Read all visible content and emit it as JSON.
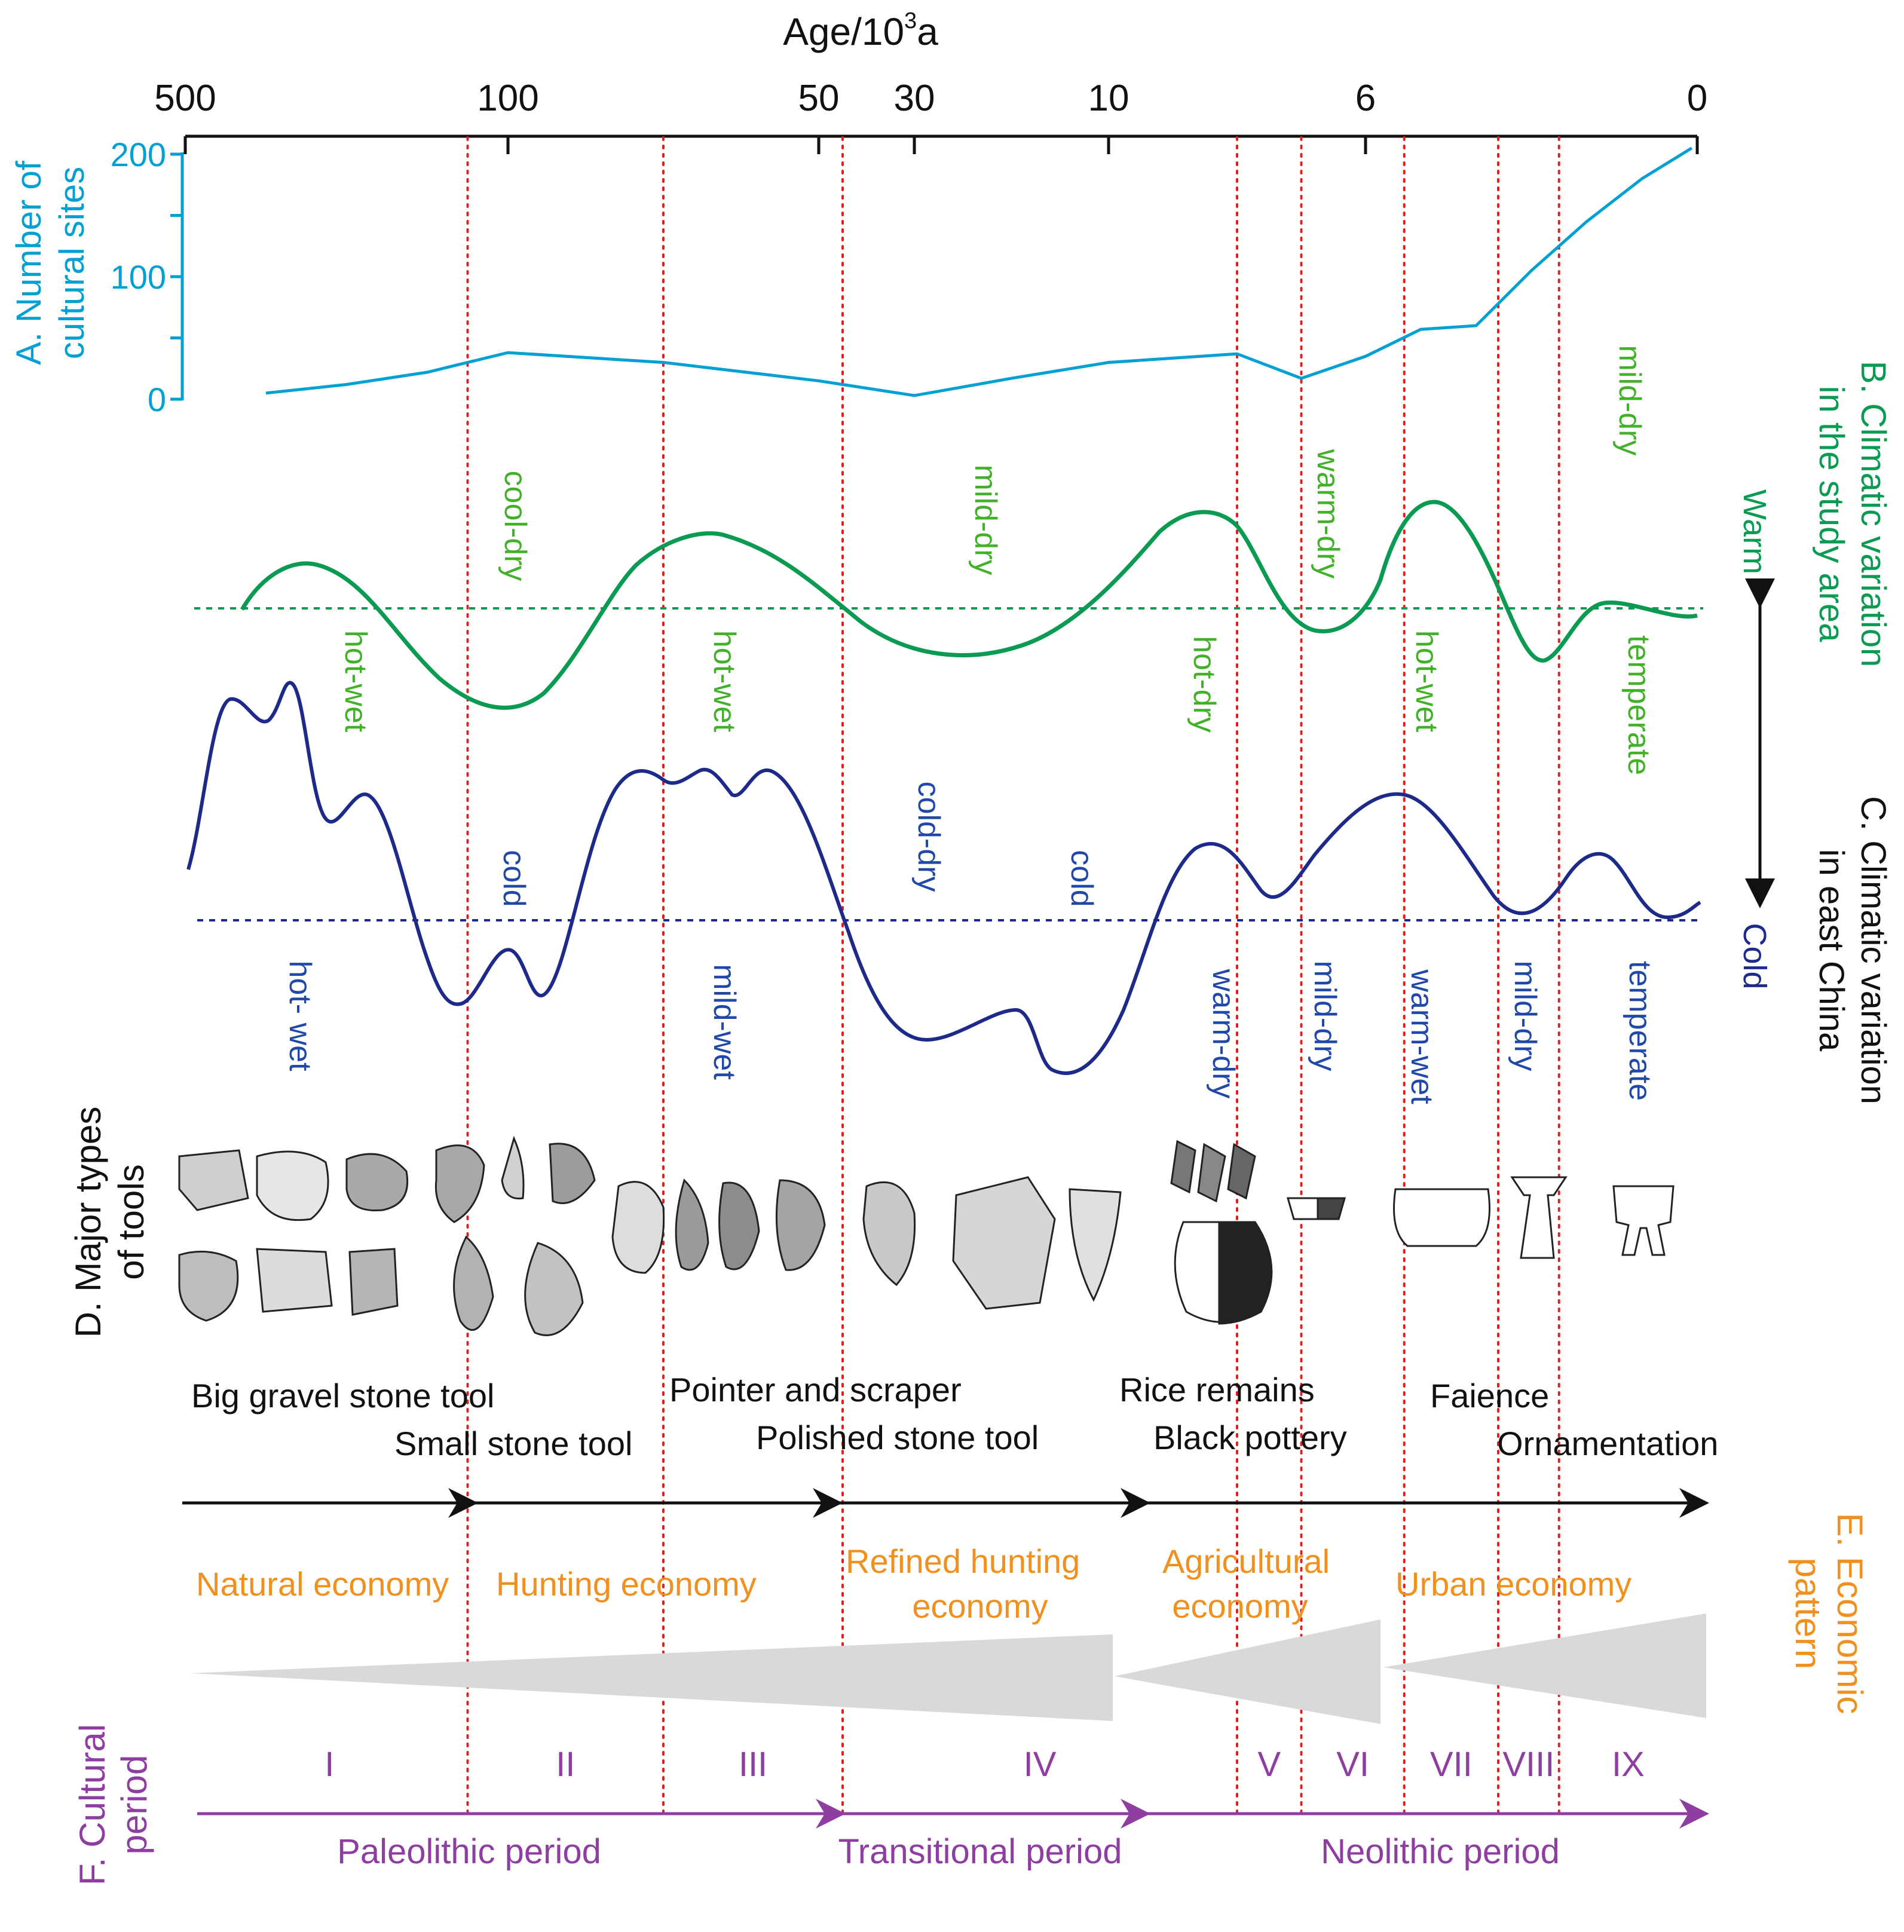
{
  "figure": {
    "axis_title": "Age/10",
    "axis_title_sup": "3",
    "axis_title_unit": "a",
    "ticks": [
      "500",
      "100",
      "50",
      "30",
      "10",
      "6",
      "0"
    ]
  },
  "chart_data": {
    "type": "line",
    "x_axis": {
      "label": "Age/10³a",
      "tick_labels": [
        "500",
        "100",
        "50",
        "30",
        "10",
        "6",
        "0"
      ],
      "scale": "segmented (non-linear)"
    },
    "period_boundaries_ka": [
      150,
      75,
      45,
      8,
      7,
      5.3,
      3.6,
      2.5
    ],
    "panel_a": {
      "title_line1": "A. Number of",
      "title_line2": "cultural sites",
      "y_ticks": [
        "200",
        "100",
        "0"
      ],
      "ylim": [
        0,
        200
      ],
      "x_ka": [
        400,
        300,
        200,
        100,
        75,
        50,
        30,
        20,
        10,
        8,
        7,
        6,
        5,
        4,
        3,
        2,
        1,
        0.1
      ],
      "values": [
        5,
        12,
        22,
        38,
        30,
        15,
        3,
        17,
        30,
        37,
        17,
        35,
        57,
        60,
        105,
        145,
        180,
        205
      ],
      "color": "#00a0d2"
    },
    "panel_b": {
      "title_line1": "B. Climatic variation",
      "title_line2": "in the study area",
      "color": "#0a9a52",
      "labels": [
        {
          "text": "cool-dry",
          "position": "upper"
        },
        {
          "text": "mild-dry",
          "position": "upper"
        },
        {
          "text": "warm-dry",
          "position": "upper"
        },
        {
          "text": "mild-dry",
          "position": "upper"
        },
        {
          "text": "hot-wet",
          "position": "lower"
        },
        {
          "text": "hot-wet",
          "position": "lower"
        },
        {
          "text": "hot-dry",
          "position": "lower"
        },
        {
          "text": "hot-wet",
          "position": "lower"
        },
        {
          "text": "temperate",
          "position": "lower"
        }
      ]
    },
    "panel_c": {
      "title_line1": "C. Climatic variation",
      "title_line2": "in east China",
      "color": "#1d2a8a",
      "labels": [
        {
          "text": "cold",
          "position": "upper"
        },
        {
          "text": "cold-dry",
          "position": "upper"
        },
        {
          "text": "cold",
          "position": "upper"
        },
        {
          "text": "hot- wet",
          "position": "lower"
        },
        {
          "text": "mild-wet",
          "position": "lower"
        },
        {
          "text": "warm-dry",
          "position": "lower"
        },
        {
          "text": "mild-dry",
          "position": "lower"
        },
        {
          "text": "warm-wet",
          "position": "lower"
        },
        {
          "text": "mild-dry",
          "position": "lower"
        },
        {
          "text": "temperate",
          "position": "lower"
        }
      ]
    },
    "warm_cold_axis": {
      "warm": "Warm",
      "cold": "Cold"
    }
  },
  "panel_d": {
    "title_line1": "D. Major types",
    "title_line2": "of tools",
    "tools": [
      "Big gravel stone tool",
      "Small stone tool",
      "Pointer and scraper",
      "Polished stone tool",
      "Rice remains",
      "Black pottery",
      "Faience",
      "Ornamentation"
    ]
  },
  "panel_e": {
    "title_line1": "E. Economic",
    "title_line2": "pattern",
    "color": "#f0901e",
    "economies": [
      "Natural economy",
      "Hunting economy",
      "Refined hunting",
      "economy",
      "Agricultural",
      "economy",
      "Urban economy"
    ]
  },
  "panel_f": {
    "title_line1": "F. Cultural",
    "title_line2": "period",
    "color": "#8e3ea0",
    "numerals": [
      "I",
      "II",
      "III",
      "IV",
      "V",
      "VI",
      "VII",
      "VIII",
      "IX"
    ],
    "periods": [
      "Paleolithic period",
      "Transitional period",
      "Neolithic period"
    ]
  },
  "colors": {
    "cyan": "#00a0d2",
    "green": "#0a9a52",
    "green_text": "#43b02a",
    "navy": "#1d2a8a",
    "navy_text": "#1f48a8",
    "orange": "#f0901e",
    "purple": "#8e3ea0",
    "red_dot": "#e02020",
    "gray_wedge": "#d9d9d9"
  }
}
